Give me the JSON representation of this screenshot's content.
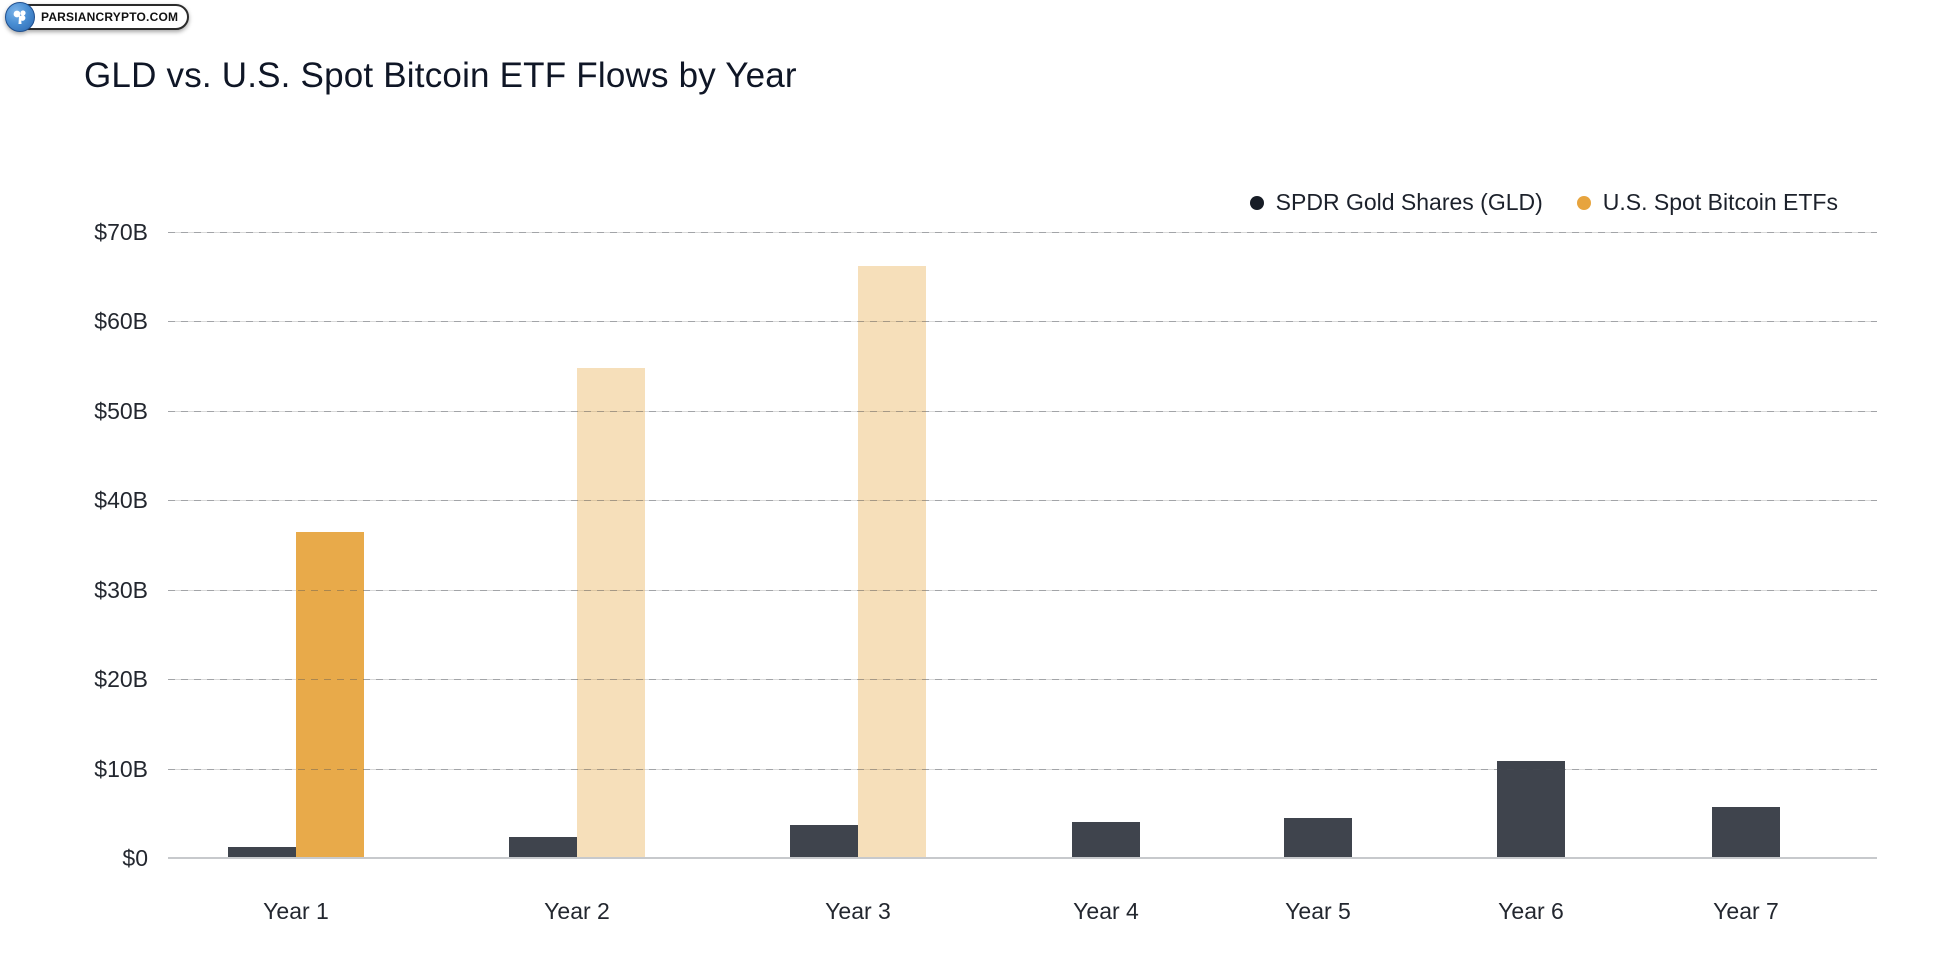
{
  "watermark": {
    "text": "PARSIANCRYPTO.COM",
    "logo": "blue-circle-tree-emblem"
  },
  "title": "GLD vs. U.S. Spot Bitcoin ETF Flows by Year",
  "legend": [
    {
      "label": "SPDR Gold Shares (GLD)",
      "dot_color": "#171c26"
    },
    {
      "label": "U.S. Spot Bitcoin ETFs",
      "dot_color": "#e7a43e"
    }
  ],
  "colors": {
    "gld_bar": "#3f444d",
    "btc_bar": "#e8aa4a",
    "btc_bar_faded_opacity": 0.38,
    "gridline": "#dadada",
    "baseline": "#c7c9cc",
    "title_text": "#0f1626",
    "axis_text": "#23272f"
  },
  "chart_data": {
    "type": "bar",
    "title": "GLD vs. U.S. Spot Bitcoin ETF Flows by Year",
    "categories": [
      "Year 1",
      "Year 2",
      "Year 3",
      "Year 4",
      "Year 5",
      "Year 6",
      "Year 7"
    ],
    "series": [
      {
        "name": "SPDR Gold Shares (GLD)",
        "color": "#3f444d",
        "values": [
          1.2,
          2.4,
          3.7,
          4.0,
          4.5,
          10.8,
          5.7
        ],
        "bar_opacity": [
          1,
          1,
          1,
          1,
          1,
          1,
          1
        ]
      },
      {
        "name": "U.S. Spot Bitcoin ETFs",
        "color": "#e8aa4a",
        "values": [
          36.5,
          54.8,
          66.2,
          null,
          null,
          null,
          null
        ],
        "bar_opacity": [
          1,
          0.38,
          0.38,
          null,
          null,
          null,
          null
        ]
      }
    ],
    "units": "USD billions",
    "xlabel": "",
    "ylabel": "",
    "ylim": [
      0,
      70
    ],
    "ytick_step": 10,
    "ytick_labels": [
      "$0",
      "$10B",
      "$20B",
      "$30B",
      "$40B",
      "$50B",
      "$60B",
      "$70B"
    ],
    "grid": true,
    "legend_position": "top-right"
  }
}
